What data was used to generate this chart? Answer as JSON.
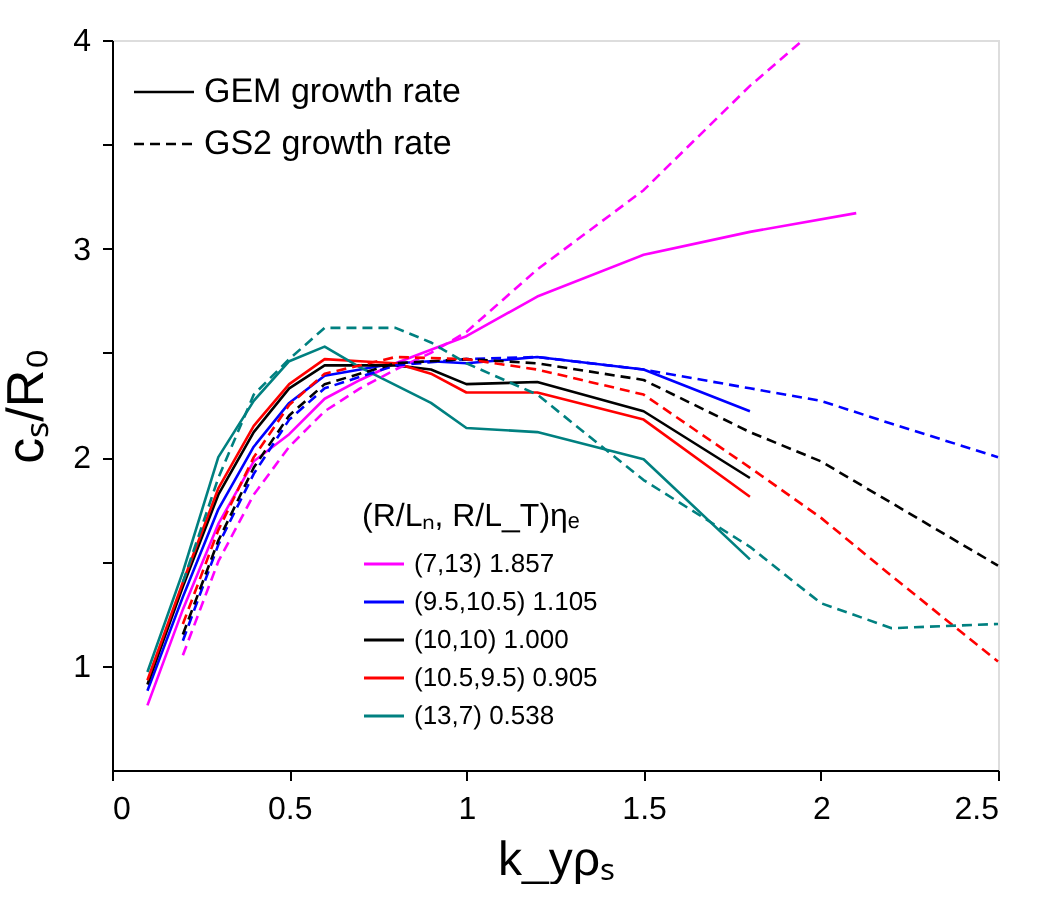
{
  "chart_data": {
    "type": "line",
    "xlabel": "k_yρₛ",
    "ylabel": "cₛ/R₀",
    "legend_title": "(R/Lₙ, R/L_T)ηₑ",
    "xlim": [
      0,
      2.5
    ],
    "xticks": [
      0,
      0.5,
      1,
      1.5,
      2,
      2.5
    ],
    "ylim": [
      0.5,
      4
    ],
    "yticks": [
      1,
      {
        "value": 1.5,
        "label": null
      },
      2,
      {
        "value": 2.5,
        "label": null
      },
      3,
      {
        "value": 3.5,
        "label": null
      },
      4
    ],
    "grid": false,
    "legend": "bottom",
    "marker": "none",
    "annotations": [
      "GEM growth rate",
      "GS2 growth rate"
    ],
    "series": [
      {
        "name": "(7,13) 1.857",
        "color": "#ff00ff",
        "line_style": "solid",
        "x": [
          0.1,
          0.2,
          0.3,
          0.4,
          0.5,
          0.6,
          0.7,
          0.8,
          1.0,
          1.2,
          1.5,
          1.8,
          2.1
        ],
        "values": [
          0.81,
          1.27,
          1.68,
          1.98,
          2.11,
          2.28,
          2.37,
          2.45,
          2.58,
          2.77,
          2.97,
          3.08,
          3.17
        ]
      },
      {
        "name": "(9.5,10.5) 1.105",
        "color": "#0000ff",
        "line_style": "solid",
        "x": [
          0.1,
          0.2,
          0.3,
          0.4,
          0.5,
          0.6,
          0.7,
          0.8,
          0.9,
          1.0,
          1.2,
          1.5,
          1.8
        ],
        "values": [
          0.88,
          1.33,
          1.75,
          2.05,
          2.26,
          2.39,
          2.42,
          2.45,
          2.46,
          2.45,
          2.48,
          2.42,
          2.22
        ]
      },
      {
        "name": "(10,10) 1.000",
        "color": "#000000",
        "line_style": "solid",
        "x": [
          0.1,
          0.2,
          0.3,
          0.4,
          0.5,
          0.6,
          0.7,
          0.8,
          0.9,
          1.0,
          1.2,
          1.5,
          1.8
        ],
        "values": [
          0.91,
          1.38,
          1.82,
          2.12,
          2.33,
          2.44,
          2.44,
          2.44,
          2.42,
          2.35,
          2.36,
          2.22,
          1.9
        ]
      },
      {
        "name": "(10.5,9.5) 0.905",
        "color": "#ff0000",
        "line_style": "solid",
        "x": [
          0.1,
          0.2,
          0.3,
          0.4,
          0.5,
          0.6,
          0.7,
          0.8,
          0.9,
          1.0,
          1.2,
          1.5,
          1.8
        ],
        "values": [
          0.93,
          1.4,
          1.85,
          2.15,
          2.35,
          2.47,
          2.46,
          2.45,
          2.4,
          2.31,
          2.31,
          2.18,
          1.81
        ]
      },
      {
        "name": "(13,7) 0.538",
        "color": "#008080",
        "line_style": "solid",
        "x": [
          0.1,
          0.2,
          0.3,
          0.4,
          0.5,
          0.6,
          0.7,
          0.9,
          1.0,
          1.2,
          1.5,
          1.8
        ],
        "values": [
          0.97,
          1.45,
          2.0,
          2.27,
          2.46,
          2.53,
          2.43,
          2.26,
          2.14,
          2.12,
          1.99,
          1.51
        ]
      },
      {
        "color": "#ff00ff",
        "line_style": "dashed",
        "x": [
          0.2,
          0.3,
          0.4,
          0.5,
          0.6,
          0.7,
          0.8,
          0.9,
          1.0,
          1.2,
          1.5,
          1.8,
          1.95
        ],
        "values": [
          1.05,
          1.5,
          1.82,
          2.05,
          2.22,
          2.33,
          2.42,
          2.5,
          2.6,
          2.9,
          3.28,
          3.78,
          4.0
        ]
      },
      {
        "color": "#0000ff",
        "line_style": "dashed",
        "x": [
          0.2,
          0.3,
          0.4,
          0.5,
          0.6,
          0.8,
          1.0,
          1.2,
          1.5,
          1.8,
          2.0,
          2.2,
          2.5
        ],
        "values": [
          1.12,
          1.58,
          1.92,
          2.18,
          2.33,
          2.44,
          2.47,
          2.48,
          2.42,
          2.33,
          2.27,
          2.16,
          2.0
        ]
      },
      {
        "color": "#000000",
        "line_style": "dashed",
        "x": [
          0.2,
          0.3,
          0.4,
          0.5,
          0.6,
          0.8,
          1.0,
          1.2,
          1.5,
          1.8,
          2.0,
          2.2,
          2.5
        ],
        "values": [
          1.15,
          1.6,
          1.95,
          2.2,
          2.35,
          2.45,
          2.47,
          2.45,
          2.37,
          2.12,
          1.98,
          1.78,
          1.48
        ]
      },
      {
        "color": "#ff0000",
        "line_style": "dashed",
        "x": [
          0.2,
          0.3,
          0.4,
          0.5,
          0.6,
          0.8,
          1.0,
          1.2,
          1.5,
          1.8,
          2.0,
          2.2,
          2.5
        ],
        "values": [
          1.2,
          1.65,
          2.0,
          2.25,
          2.4,
          2.48,
          2.47,
          2.42,
          2.3,
          1.95,
          1.71,
          1.43,
          1.02
        ]
      },
      {
        "color": "#008080",
        "line_style": "dashed",
        "x": [
          0.2,
          0.3,
          0.4,
          0.5,
          0.6,
          0.8,
          0.9,
          1.0,
          1.2,
          1.5,
          1.8,
          2.0,
          2.2,
          2.5
        ],
        "values": [
          1.4,
          1.9,
          2.3,
          2.47,
          2.62,
          2.62,
          2.55,
          2.45,
          2.3,
          1.89,
          1.57,
          1.3,
          1.18,
          1.2
        ]
      }
    ]
  }
}
